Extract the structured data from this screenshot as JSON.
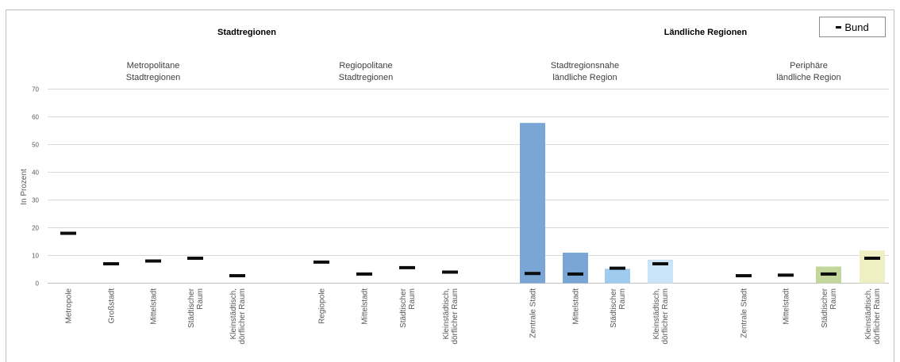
{
  "chart_data": {
    "type": "bar",
    "ylabel": "In Prozent",
    "ylim": [
      0,
      70
    ],
    "yticks": [
      "0",
      "10",
      "20",
      "30",
      "40",
      "50",
      "60",
      "70"
    ],
    "grid": true,
    "legend": {
      "position": "top-right",
      "entries": [
        "Bund"
      ]
    },
    "super_groups": [
      {
        "label": "Stadtregionen"
      },
      {
        "label": "Ländliche Regionen"
      }
    ],
    "groups": [
      {
        "label_lines": [
          "Metropolitane",
          "Stadtregionen"
        ],
        "categories": [
          {
            "label_lines": [
              "Metropole"
            ],
            "value": null,
            "bund": 18.0
          },
          {
            "label_lines": [
              "Großstadt"
            ],
            "value": null,
            "bund": 7.0
          },
          {
            "label_lines": [
              "Mittelstadt"
            ],
            "value": null,
            "bund": 8.0
          },
          {
            "label_lines": [
              "Städtischer",
              "Raum"
            ],
            "value": null,
            "bund": 9.0
          },
          {
            "label_lines": [
              "Kleinstädtisch,",
              "dörflicher Raum"
            ],
            "value": null,
            "bund": 2.7
          }
        ]
      },
      {
        "label_lines": [
          "Regiopolitane",
          "Stadtregionen"
        ],
        "categories": [
          {
            "label_lines": [
              "Regiopole"
            ],
            "value": null,
            "bund": 7.6
          },
          {
            "label_lines": [
              "Mittelstadt"
            ],
            "value": null,
            "bund": 3.3
          },
          {
            "label_lines": [
              "Städtischer",
              "Raum"
            ],
            "value": null,
            "bund": 5.6
          },
          {
            "label_lines": [
              "Kleinstädtisch,",
              "dörflicher Raum"
            ],
            "value": null,
            "bund": 4.0
          }
        ]
      },
      {
        "label_lines": [
          "Stadtregionsnahe",
          "ländliche Region"
        ],
        "categories": [
          {
            "label_lines": [
              "Zentrale Stadt"
            ],
            "value": 57.8,
            "bund": 3.5,
            "color": "#7aa6d6"
          },
          {
            "label_lines": [
              "Mittelstadt"
            ],
            "value": 11.0,
            "bund": 3.3,
            "color": "#7aa6d6"
          },
          {
            "label_lines": [
              "Städtischer",
              "Raum"
            ],
            "value": 5.2,
            "bund": 5.4,
            "color": "#9fcbef"
          },
          {
            "label_lines": [
              "Kleinstädtisch,",
              "dörflicher Raum"
            ],
            "value": 8.5,
            "bund": 7.0,
            "color": "#c9e4f6"
          }
        ]
      },
      {
        "label_lines": [
          "Periphäre",
          "ländliche Region"
        ],
        "categories": [
          {
            "label_lines": [
              "Zentrale Stadt"
            ],
            "value": null,
            "bund": 2.7
          },
          {
            "label_lines": [
              "Mittelstadt"
            ],
            "value": null,
            "bund": 2.9
          },
          {
            "label_lines": [
              "Städtischer",
              "Raum"
            ],
            "value": 6.0,
            "bund": 3.3,
            "color": "#c3d69b"
          },
          {
            "label_lines": [
              "Kleinstädtisch,",
              "dörflicher Raum"
            ],
            "value": 11.8,
            "bund": 9.0,
            "color": "#eef0c4"
          }
        ]
      }
    ]
  }
}
